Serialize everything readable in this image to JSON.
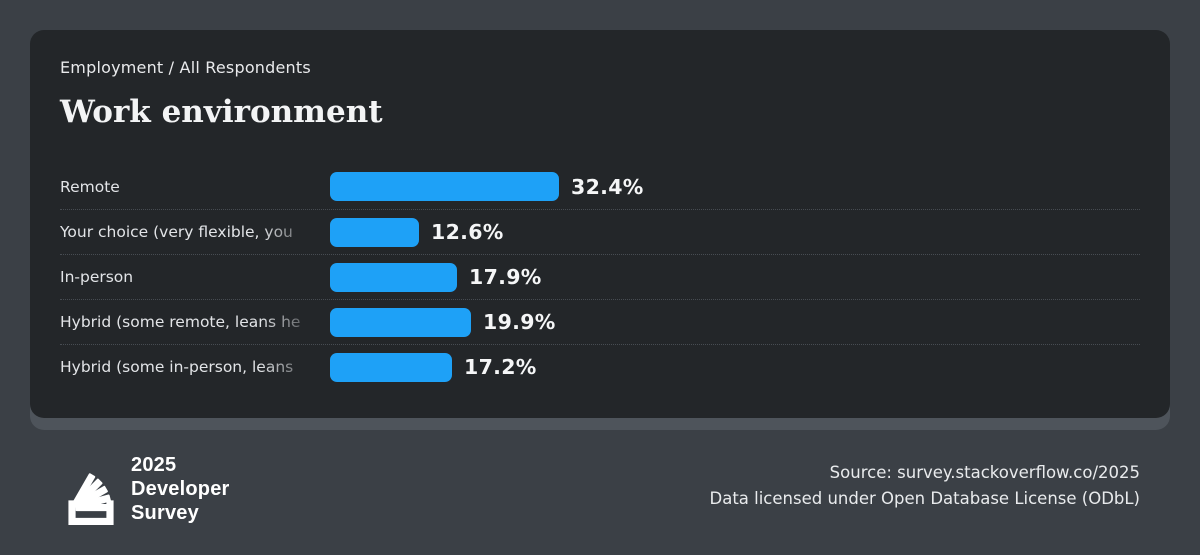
{
  "header": {
    "breadcrumb": "Employment / All Respondents",
    "title": "Work environment"
  },
  "chart_data": {
    "type": "bar",
    "orientation": "horizontal",
    "title": "Work environment",
    "subtitle": "Employment / All Respondents",
    "categories": [
      "Remote",
      "Your choice (very flexible, you",
      "In-person",
      "Hybrid (some remote, leans he",
      "Hybrid (some in-person, leans"
    ],
    "values": [
      32.4,
      12.6,
      17.9,
      19.9,
      17.2
    ],
    "value_labels": [
      "32.4%",
      "12.6%",
      "17.9%",
      "19.9%",
      "17.2%"
    ],
    "xlim": [
      0,
      100
    ],
    "bar_color": "#1ea1f7",
    "grid": "dotted-row-separators",
    "legend": "none",
    "labels_truncated_with_fade": true
  },
  "footer": {
    "brand": {
      "logo_icon": "stackoverflow-logo",
      "line1": "2025",
      "line2": "Developer",
      "line3": "Survey"
    },
    "source_line1": "Source: survey.stackoverflow.co/2025",
    "source_line2": "Data licensed under Open Database License (ODbL)"
  },
  "colors": {
    "page_bg": "#3b4046",
    "card_bg": "#232629",
    "card_back_layer": "#4e545b",
    "bar": "#1ea1f7",
    "separator": "#474c52",
    "text_primary": "#f3f4f5",
    "text_secondary": "#e2e4e7"
  }
}
